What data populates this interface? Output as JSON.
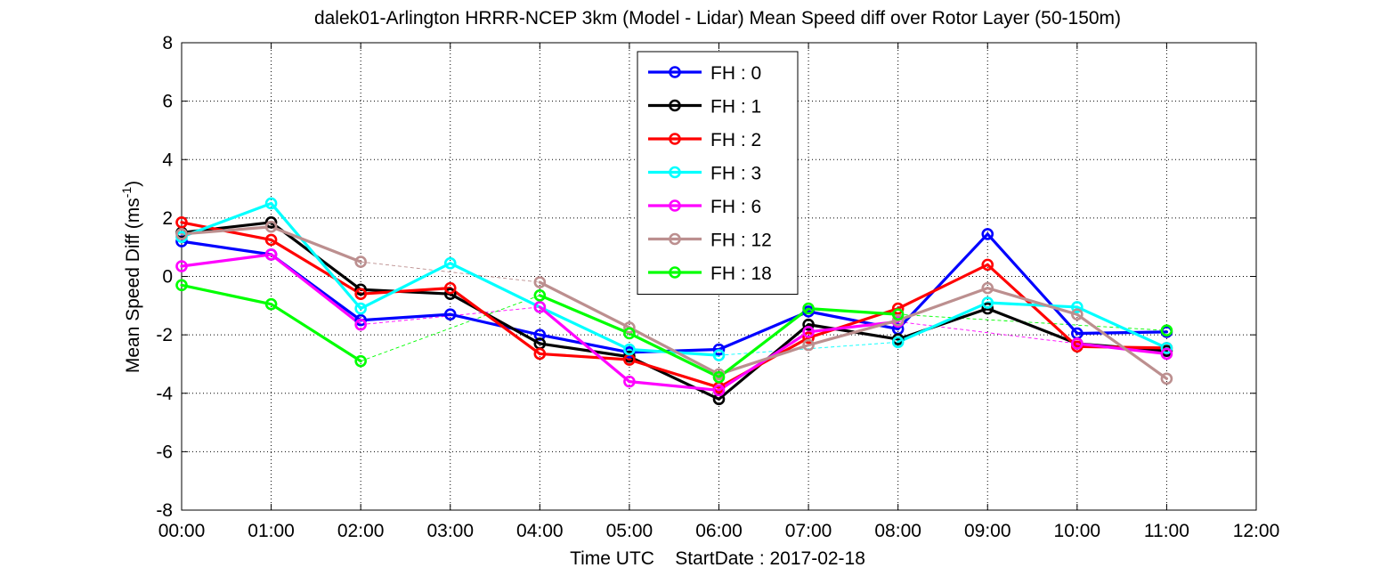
{
  "chart_data": {
    "type": "line",
    "title": "dalek01-Arlington HRRR-NCEP 3km (Model - Lidar) Mean Speed diff over Rotor Layer (50-150m)",
    "xlabel": "Time UTC    StartDate : 2017-02-18",
    "ylabel": "Mean Speed Diff (ms",
    "ylabel_sup": "-1",
    "ylabel_close": ")",
    "x_ticks": [
      "00:00",
      "01:00",
      "02:00",
      "03:00",
      "04:00",
      "05:00",
      "06:00",
      "07:00",
      "08:00",
      "09:00",
      "10:00",
      "11:00",
      "12:00"
    ],
    "y_ticks": [
      "-8",
      "-6",
      "-4",
      "-2",
      "0",
      "2",
      "4",
      "6",
      "8"
    ],
    "xlim": [
      0,
      12
    ],
    "ylim": [
      -8,
      8
    ],
    "grid": true,
    "legend_position": "top-center",
    "series": [
      {
        "name": "FH : 0",
        "color": "#0000ff",
        "values": [
          1.2,
          0.75,
          -1.5,
          -1.3,
          -2.0,
          -2.6,
          -2.5,
          -1.2,
          -1.8,
          1.45,
          -1.95,
          -1.9
        ]
      },
      {
        "name": "FH : 1",
        "color": "#000000",
        "values": [
          1.5,
          1.85,
          -0.45,
          -0.6,
          -2.3,
          -2.75,
          -4.2,
          -1.65,
          -2.15,
          -1.1,
          -2.3,
          -2.55
        ]
      },
      {
        "name": "FH : 2",
        "color": "#ff0000",
        "values": [
          1.85,
          1.25,
          -0.6,
          -0.4,
          -2.65,
          -2.85,
          -3.8,
          -2.1,
          -1.1,
          0.4,
          -2.4,
          -2.45
        ]
      },
      {
        "name": "FH : 3",
        "color": "#00ffff",
        "values": [
          1.35,
          2.5,
          -1.1,
          0.45,
          -1.05,
          -2.5,
          -2.7,
          null,
          -2.25,
          -0.9,
          -1.05,
          -2.45
        ]
      },
      {
        "name": "FH : 6",
        "color": "#ff00ff",
        "values": [
          0.35,
          0.75,
          -1.65,
          null,
          -1.05,
          -3.6,
          -3.9,
          -1.9,
          -1.55,
          null,
          -2.3,
          -2.65
        ]
      },
      {
        "name": "FH : 12",
        "color": "#bc8f8f",
        "values": [
          1.45,
          1.7,
          0.5,
          null,
          -0.2,
          -1.75,
          -3.35,
          -2.35,
          -1.5,
          -0.4,
          -1.3,
          -3.5
        ]
      },
      {
        "name": "FH : 18",
        "color": "#00ff00",
        "values": [
          -0.3,
          -0.95,
          -2.9,
          null,
          -0.65,
          -1.95,
          -3.45,
          -1.1,
          -1.3,
          null,
          null,
          -1.85
        ]
      }
    ]
  }
}
